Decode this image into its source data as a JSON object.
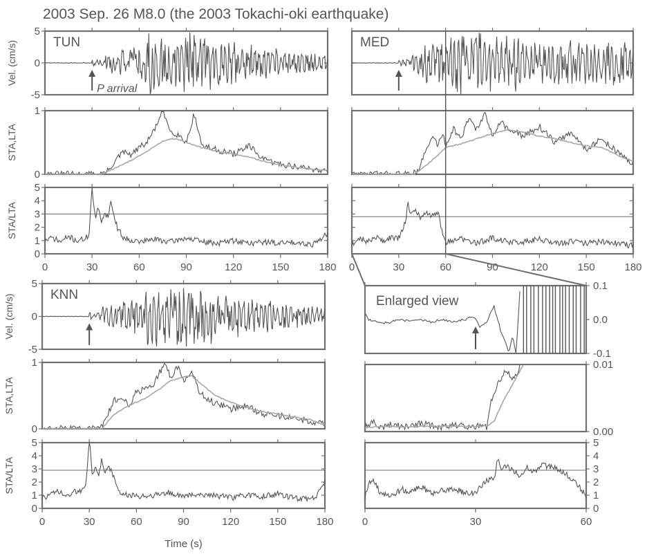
{
  "title": "2003 Sep. 26  M8.0 (the 2003 Tokachi-oki earthquake)",
  "annotations": {
    "p_arrival": "P arrival",
    "enlarged_view": "Enlarged view"
  },
  "colors": {
    "frame": "#6f6f6f",
    "trace": "#555555",
    "lta_curve": "#a8a8a8"
  },
  "chart_data": [
    {
      "id": "TUN",
      "station": "TUN",
      "type": "line",
      "xlabel": "",
      "xlim": [
        0,
        180
      ],
      "xticks": [
        0,
        30,
        60,
        90,
        120,
        150,
        180
      ],
      "p_arrival_s": 30,
      "panels": {
        "velocity": {
          "ylabel": "Vel. (cm/s)",
          "ylim": [
            -5,
            5
          ],
          "yticks": [
            -5,
            0,
            5
          ],
          "pre_event_level": 0,
          "peak_time_s": 75,
          "peak_abs": 5
        },
        "sta_lta_pair": {
          "ylabel": "STA,LTA",
          "ylim": [
            0,
            1
          ],
          "yticks": [
            0,
            1
          ],
          "series": [
            {
              "key": "sta",
              "t": [
                0,
                35,
                40,
                45,
                50,
                55,
                60,
                65,
                70,
                75,
                80,
                85,
                90,
                95,
                100,
                110,
                120,
                130,
                140,
                150,
                160,
                170,
                180
              ],
              "v": [
                0,
                0,
                0.05,
                0.22,
                0.35,
                0.3,
                0.42,
                0.5,
                0.72,
                0.98,
                0.68,
                0.62,
                0.5,
                0.95,
                0.45,
                0.38,
                0.32,
                0.44,
                0.22,
                0.16,
                0.12,
                0.08,
                0.06
              ]
            },
            {
              "key": "lta",
              "t": [
                0,
                36,
                45,
                55,
                65,
                75,
                80,
                85,
                90,
                100,
                110,
                120,
                130,
                140,
                150,
                160,
                170,
                180
              ],
              "v": [
                0,
                0,
                0.1,
                0.22,
                0.36,
                0.52,
                0.56,
                0.55,
                0.5,
                0.42,
                0.36,
                0.32,
                0.27,
                0.2,
                0.15,
                0.11,
                0.08,
                0.06
              ]
            }
          ]
        },
        "sta_lta_ratio": {
          "ylabel": "STA/LTA",
          "ylim": [
            0,
            5
          ],
          "yticks": [
            0,
            1,
            2,
            3,
            4,
            5
          ],
          "threshold": 3,
          "t": [
            0,
            5,
            10,
            15,
            20,
            25,
            28,
            30,
            32,
            34,
            36,
            38,
            40,
            42,
            44,
            46,
            48,
            50,
            60,
            70,
            80,
            90,
            100,
            110,
            120,
            130,
            140,
            150,
            160,
            170,
            180
          ],
          "v": [
            1.0,
            1.2,
            0.9,
            1.3,
            1.0,
            1.1,
            1.4,
            5.0,
            2.6,
            3.4,
            2.5,
            3.1,
            2.8,
            3.9,
            2.9,
            2.0,
            1.6,
            1.2,
            0.9,
            1.1,
            0.9,
            1.2,
            0.9,
            0.8,
            1.0,
            0.8,
            0.9,
            0.8,
            0.9,
            0.7,
            1.5
          ]
        }
      }
    },
    {
      "id": "MED",
      "station": "MED",
      "type": "line",
      "xlabel": "",
      "xlim": [
        0,
        180
      ],
      "xticks": [
        0,
        30,
        60,
        90,
        120,
        150,
        180
      ],
      "p_arrival_s": 30,
      "marker_time_s": 60,
      "enlarged_range_s": [
        0,
        60
      ],
      "panels": {
        "velocity": {
          "ylabel": "",
          "ylim": [
            -5,
            5
          ],
          "yticks": [
            -5,
            0,
            5
          ],
          "pre_event_level": 0,
          "peak_time_s": 75,
          "peak_abs": 5
        },
        "sta_lta_pair": {
          "ylabel": "",
          "ylim": [
            0,
            1
          ],
          "yticks": [
            0,
            1
          ],
          "series": [
            {
              "key": "sta",
              "t": [
                0,
                38,
                42,
                48,
                52,
                55,
                58,
                60,
                65,
                70,
                75,
                80,
                85,
                90,
                95,
                100,
                110,
                120,
                130,
                140,
                150,
                160,
                170,
                175,
                180
              ],
              "v": [
                0,
                0,
                0.05,
                0.4,
                0.6,
                0.45,
                0.65,
                0.45,
                0.72,
                0.55,
                0.9,
                0.7,
                0.95,
                0.6,
                0.85,
                0.7,
                0.6,
                0.75,
                0.5,
                0.65,
                0.4,
                0.55,
                0.35,
                0.25,
                0.15
              ]
            },
            {
              "key": "lta",
              "t": [
                0,
                40,
                48,
                55,
                60,
                70,
                80,
                90,
                100,
                110,
                120,
                130,
                140,
                150,
                160,
                170,
                180
              ],
              "v": [
                0,
                0,
                0.15,
                0.3,
                0.42,
                0.48,
                0.56,
                0.64,
                0.7,
                0.66,
                0.6,
                0.56,
                0.5,
                0.45,
                0.42,
                0.3,
                0.2
              ]
            }
          ]
        },
        "sta_lta_ratio": {
          "ylabel": "",
          "ylim": [
            0,
            5
          ],
          "yticks": [
            0,
            1,
            2,
            3,
            4,
            5
          ],
          "threshold": 2.8,
          "t": [
            0,
            5,
            10,
            15,
            20,
            25,
            30,
            34,
            36,
            38,
            40,
            44,
            48,
            52,
            55,
            58,
            60,
            70,
            80,
            90,
            100,
            110,
            120,
            130,
            140,
            150,
            160,
            170,
            180
          ],
          "v": [
            0.7,
            1.2,
            0.9,
            1.3,
            1.0,
            1.2,
            1.2,
            2.3,
            3.8,
            2.9,
            3.3,
            2.7,
            3.1,
            2.8,
            3.2,
            1.5,
            0.9,
            1.1,
            0.8,
            1.2,
            0.9,
            0.9,
            1.1,
            0.8,
            0.9,
            0.8,
            0.9,
            0.8,
            0.6
          ]
        }
      }
    },
    {
      "id": "KNN",
      "station": "KNN",
      "type": "line",
      "xlabel": "Time (s)",
      "xlim": [
        0,
        180
      ],
      "xticks": [
        0,
        30,
        60,
        90,
        120,
        150,
        180
      ],
      "p_arrival_s": 30,
      "panels": {
        "velocity": {
          "ylabel": "Vel. (cm/s)",
          "ylim": [
            -5,
            5
          ],
          "yticks": [
            -5,
            0,
            5
          ],
          "pre_event_level": 0,
          "peak_time_s": 78,
          "peak_abs": 5
        },
        "sta_lta_pair": {
          "ylabel": "STA,LTA",
          "ylim": [
            0,
            1
          ],
          "yticks": [
            0,
            1
          ],
          "series": [
            {
              "key": "sta",
              "t": [
                0,
                36,
                40,
                45,
                50,
                55,
                60,
                65,
                70,
                75,
                78,
                82,
                86,
                90,
                95,
                100,
                110,
                120,
                130,
                140,
                150,
                160,
                170,
                180
              ],
              "v": [
                0,
                0,
                0.1,
                0.4,
                0.5,
                0.35,
                0.55,
                0.6,
                0.65,
                0.85,
                1.0,
                0.75,
                0.95,
                0.7,
                0.9,
                0.55,
                0.38,
                0.3,
                0.35,
                0.22,
                0.2,
                0.16,
                0.12,
                0.06
              ]
            },
            {
              "key": "lta",
              "t": [
                0,
                38,
                45,
                55,
                65,
                75,
                80,
                85,
                90,
                95,
                100,
                110,
                120,
                130,
                140,
                150,
                160,
                170,
                180
              ],
              "v": [
                0,
                0,
                0.2,
                0.35,
                0.45,
                0.6,
                0.7,
                0.75,
                0.78,
                0.8,
                0.7,
                0.5,
                0.4,
                0.32,
                0.26,
                0.22,
                0.18,
                0.14,
                0.06
              ]
            }
          ]
        },
        "sta_lta_ratio": {
          "ylabel": "STA/LTA",
          "ylim": [
            0,
            5
          ],
          "yticks": [
            0,
            1,
            2,
            3,
            4,
            5
          ],
          "threshold": 2.9,
          "t": [
            0,
            5,
            10,
            15,
            20,
            25,
            28,
            30,
            32,
            34,
            36,
            38,
            40,
            42,
            44,
            46,
            48,
            50,
            60,
            70,
            80,
            90,
            100,
            110,
            120,
            130,
            140,
            150,
            160,
            170,
            175,
            180
          ],
          "v": [
            0.8,
            1.0,
            1.3,
            0.9,
            1.2,
            1.4,
            2.0,
            5.4,
            2.3,
            3.1,
            2.5,
            3.8,
            2.6,
            3.4,
            2.8,
            2.2,
            1.6,
            1.1,
            0.9,
            1.0,
            1.2,
            0.9,
            1.1,
            1.0,
            0.8,
            1.0,
            0.9,
            1.1,
            0.8,
            0.7,
            1.0,
            2.0
          ]
        }
      }
    },
    {
      "id": "MED-enlarged",
      "station": "",
      "type": "line",
      "xlabel": "",
      "xlim": [
        0,
        60
      ],
      "xticks": [
        0,
        30,
        60
      ],
      "p_arrival_s": 30,
      "panels": {
        "velocity": {
          "ylabel": "",
          "ylim": [
            -0.1,
            0.1
          ],
          "yticks": [
            -0.1,
            0.0,
            0.1
          ],
          "tick_labels": [
            "-0.1",
            "0.0",
            "0.1"
          ],
          "t": [
            0,
            1,
            3,
            6,
            9,
            12,
            15,
            18,
            21,
            24,
            27,
            29,
            30,
            31,
            33,
            34,
            35,
            36,
            37,
            38,
            39,
            40,
            41,
            42
          ],
          "v": [
            0.02,
            0.0,
            -0.005,
            -0.01,
            0.0,
            -0.005,
            0.0,
            -0.008,
            0.0,
            -0.005,
            0.0,
            0.01,
            0.0,
            -0.02,
            -0.01,
            0.02,
            0.04,
            0.0,
            -0.04,
            -0.06,
            -0.1,
            -0.05,
            -0.1,
            0.08
          ],
          "saturated_from_s": 42
        },
        "sta_lta_pair": {
          "ylabel": "",
          "ylim": [
            0,
            0.01
          ],
          "yticks": [
            0,
            0.01
          ],
          "tick_labels": [
            "0.00",
            "0.01"
          ],
          "series": [
            {
              "key": "sta",
              "t": [
                0,
                2,
                4,
                6,
                8,
                10,
                15,
                20,
                25,
                30,
                33,
                34,
                35,
                36,
                38,
                40,
                42
              ],
              "v": [
                0.0005,
                0.0015,
                0.0005,
                0.0008,
                0.0012,
                0.0006,
                0.0012,
                0.0007,
                0.0009,
                0.0008,
                0.0007,
                0.004,
                0.006,
                0.007,
                0.009,
                0.008,
                0.0095
              ]
            },
            {
              "key": "lta",
              "t": [
                0,
                5,
                10,
                15,
                20,
                25,
                30,
                33,
                35,
                37,
                39,
                41,
                43
              ],
              "v": [
                0.0006,
                0.0008,
                0.0007,
                0.0008,
                0.0008,
                0.0008,
                0.0008,
                0.0008,
                0.0015,
                0.004,
                0.006,
                0.008,
                0.01
              ]
            }
          ]
        },
        "sta_lta_ratio": {
          "ylabel": "",
          "ylim": [
            0,
            5
          ],
          "yticks": [
            0,
            1,
            2,
            3,
            4,
            5
          ],
          "threshold": 2.9,
          "t": [
            0,
            1,
            2,
            4,
            6,
            8,
            10,
            12,
            15,
            18,
            20,
            24,
            28,
            30,
            32,
            34,
            35,
            36,
            37,
            38,
            40,
            42,
            44,
            46,
            48,
            50,
            52,
            55,
            57,
            60
          ],
          "v": [
            0.8,
            1.8,
            2.2,
            1.3,
            0.9,
            1.0,
            1.5,
            1.2,
            1.7,
            1.1,
            1.3,
            1.5,
            1.1,
            1.2,
            1.8,
            2.3,
            2.2,
            3.8,
            2.9,
            3.3,
            2.9,
            2.5,
            3.1,
            2.8,
            3.3,
            3.2,
            3.0,
            2.5,
            2.1,
            0.9
          ]
        }
      }
    }
  ]
}
